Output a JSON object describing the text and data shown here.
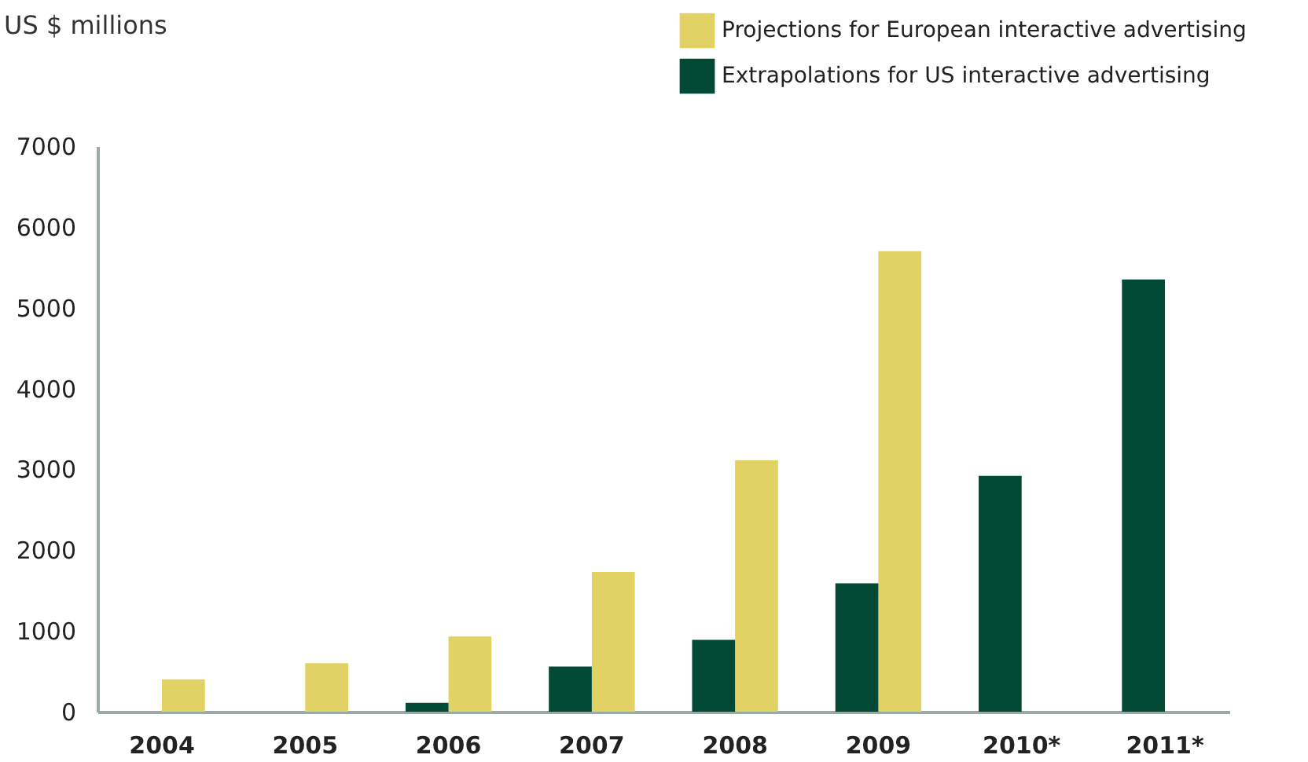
{
  "chart_data": {
    "type": "bar",
    "ylabel": "US $ millions",
    "categories": [
      "2004",
      "2005",
      "2006",
      "2007",
      "2008",
      "2009",
      "2010*",
      "2011*"
    ],
    "series": [
      {
        "name": "Projections for European interactive advertising",
        "color": "#e2d164",
        "values": [
          400,
          600,
          930,
          1730,
          3110,
          5700,
          null,
          null
        ]
      },
      {
        "name": "Extrapolations for US interactive advertising",
        "color": "#024a35",
        "values": [
          null,
          null,
          110,
          560,
          890,
          1590,
          2920,
          5350
        ]
      }
    ],
    "ylim": [
      0,
      7000
    ],
    "yticks": [
      0,
      1000,
      2000,
      3000,
      4000,
      5000,
      6000,
      7000
    ],
    "grid": false,
    "legend": "top right"
  }
}
